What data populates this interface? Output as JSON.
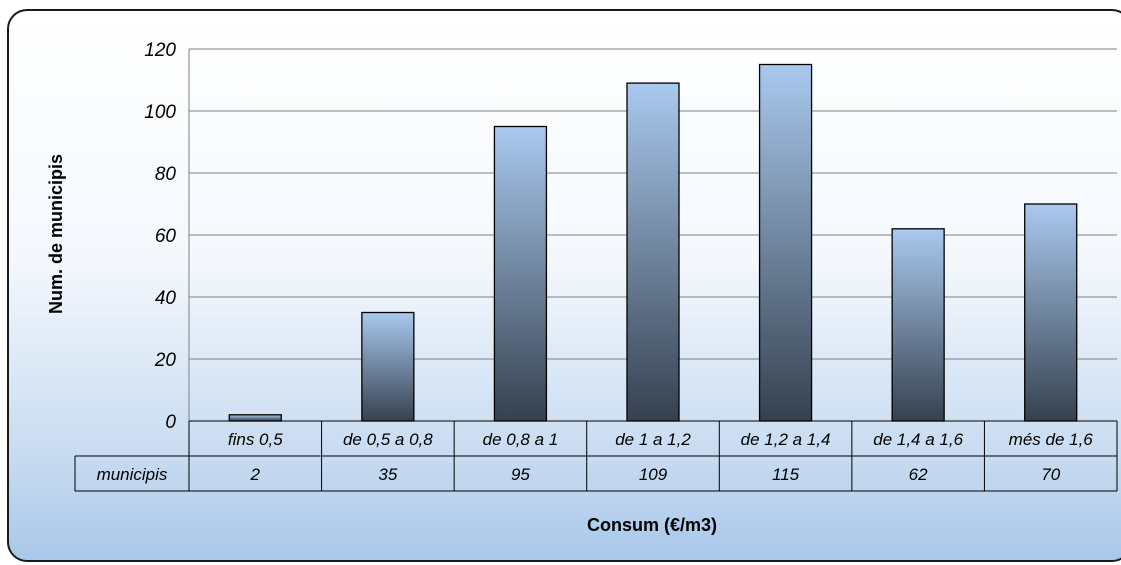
{
  "chart_data": {
    "type": "bar",
    "categories": [
      "fins 0,5",
      "de 0,5 a 0,8",
      "de 0,8 a 1",
      "de 1 a 1,2",
      "de 1,2 a 1,4",
      "de 1,4 a 1,6",
      "més de 1,6"
    ],
    "series": [
      {
        "name": "municipis",
        "values": [
          2,
          35,
          95,
          109,
          115,
          62,
          70
        ]
      }
    ],
    "value_labels": [
      "2",
      "35",
      "95",
      "109",
      "115",
      "62",
      "70"
    ],
    "xlabel": "Consum (€/m3)",
    "ylabel": "Num. de municipis",
    "ylim": [
      0,
      120
    ],
    "yticks": [
      "0",
      "20",
      "40",
      "60",
      "80",
      "100",
      "120"
    ],
    "grid": true,
    "data_table": true,
    "colors": {
      "bar_top": "#a9c9ee",
      "bar_bottom": "#36414f",
      "grid": "#7f7f7f",
      "table_line": "#000000",
      "frame_bottom": "#a9c8ea"
    }
  }
}
